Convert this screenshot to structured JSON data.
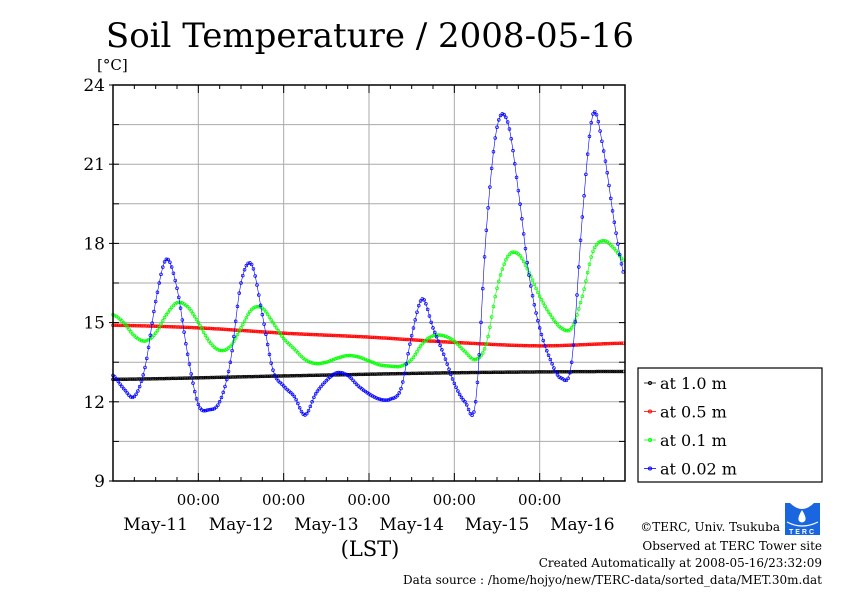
{
  "chart_data": {
    "type": "line",
    "title": "Soil Temperature / 2008-05-16",
    "ylabel": "[°C]",
    "xlabel": "(LST)",
    "ylim": [
      9,
      24
    ],
    "yticks": [
      "9",
      "12",
      "15",
      "18",
      "21",
      "24"
    ],
    "ytick_values": [
      9,
      12,
      15,
      18,
      21,
      24
    ],
    "xlim_hours": [
      0,
      144
    ],
    "x_time_labels": [
      "00:00",
      "00:00",
      "00:00",
      "00:00",
      "00:00"
    ],
    "x_time_hours": [
      24,
      48,
      72,
      96,
      120
    ],
    "x_day_labels": [
      "May-11",
      "May-12",
      "May-13",
      "May-14",
      "May-15",
      "May-16"
    ],
    "grid": true,
    "legend_position": "right",
    "series": [
      {
        "name": "at 1.0 m",
        "color": "#000000",
        "x": [
          0,
          48,
          96,
          144
        ],
        "values": [
          12.85,
          12.98,
          13.1,
          13.15
        ]
      },
      {
        "name": "at 0.5 m",
        "color": "#ff0000",
        "x": [
          0,
          24,
          48,
          72,
          96,
          120,
          144
        ],
        "values": [
          14.9,
          14.8,
          14.6,
          14.45,
          14.25,
          14.12,
          14.22
        ]
      },
      {
        "name": "at 0.1 m",
        "color": "#00ff00",
        "x": [
          0,
          3,
          6,
          9,
          12,
          15,
          18,
          21,
          24,
          27,
          30,
          33,
          36,
          39,
          42,
          45,
          48,
          51,
          54,
          57,
          60,
          63,
          66,
          69,
          72,
          75,
          78,
          81,
          84,
          87,
          90,
          93,
          96,
          99,
          102,
          105,
          108,
          111,
          114,
          117,
          120,
          123,
          126,
          129,
          132,
          135,
          138,
          141,
          144
        ],
        "values": [
          15.3,
          15.0,
          14.5,
          14.3,
          14.6,
          15.3,
          15.75,
          15.6,
          15.0,
          14.3,
          13.95,
          14.1,
          14.8,
          15.5,
          15.55,
          15.0,
          14.4,
          14.0,
          13.6,
          13.45,
          13.5,
          13.65,
          13.75,
          13.7,
          13.55,
          13.4,
          13.35,
          13.35,
          13.6,
          14.2,
          14.5,
          14.5,
          14.3,
          13.9,
          13.6,
          14.2,
          16.3,
          17.5,
          17.6,
          16.9,
          16.0,
          15.3,
          14.8,
          14.8,
          16.0,
          17.7,
          18.1,
          17.8,
          17.3
        ]
      },
      {
        "name": "at 0.02 m",
        "color": "#0000ff",
        "x": [
          0,
          3,
          6,
          9,
          12,
          15,
          18,
          21,
          24,
          27,
          30,
          33,
          36,
          39,
          42,
          45,
          48,
          51,
          54,
          57,
          60,
          63,
          66,
          69,
          72,
          75,
          78,
          81,
          84,
          87,
          90,
          93,
          96,
          99,
          102,
          105,
          108,
          111,
          114,
          117,
          120,
          123,
          126,
          129,
          132,
          135,
          138,
          141,
          144
        ],
        "values": [
          13.0,
          12.5,
          12.2,
          13.3,
          15.8,
          17.4,
          16.3,
          13.8,
          11.9,
          11.7,
          12.0,
          13.5,
          16.5,
          17.2,
          15.3,
          13.2,
          12.6,
          12.2,
          11.5,
          12.3,
          12.8,
          13.1,
          13.0,
          12.6,
          12.3,
          12.1,
          12.1,
          12.5,
          14.5,
          15.9,
          14.8,
          13.8,
          12.7,
          12.0,
          12.0,
          18.5,
          22.4,
          22.6,
          20.0,
          16.8,
          14.8,
          13.6,
          12.9,
          13.5,
          19.0,
          22.9,
          21.5,
          18.8,
          16.7
        ]
      }
    ]
  },
  "footer": {
    "copyright": "©TERC, Univ. Tsukuba",
    "observed": "Observed at TERC Tower site",
    "created": "Created Automatically at 2008-05-16/23:32:09",
    "source": "Data source : /home/hojyo/new/TERC-data/sorted_data/MET.30m.dat",
    "logo_text": "TERC"
  }
}
